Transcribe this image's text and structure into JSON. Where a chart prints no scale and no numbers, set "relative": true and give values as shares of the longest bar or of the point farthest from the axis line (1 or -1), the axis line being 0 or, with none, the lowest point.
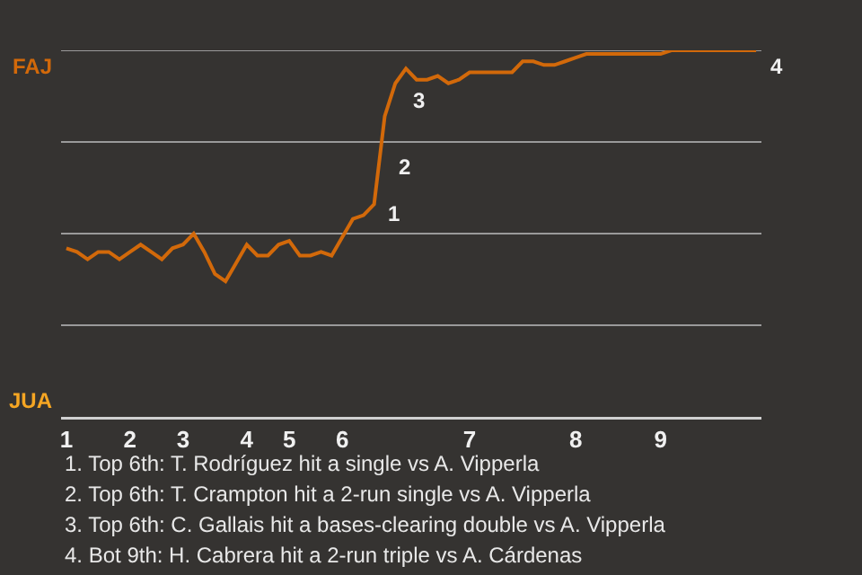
{
  "chart_data": {
    "type": "line",
    "relative": true,
    "categories": [
      "1",
      null,
      null,
      null,
      null,
      null,
      "2",
      null,
      null,
      null,
      null,
      "3",
      null,
      null,
      null,
      null,
      null,
      "4",
      null,
      null,
      null,
      "5",
      null,
      null,
      null,
      null,
      "6",
      null,
      null,
      null,
      null,
      null,
      null,
      null,
      null,
      null,
      null,
      null,
      "7",
      null,
      null,
      null,
      null,
      null,
      null,
      null,
      null,
      null,
      "8",
      null,
      null,
      null,
      null,
      null,
      null,
      null,
      "9",
      null,
      null,
      null,
      null,
      null,
      null,
      null,
      null,
      null
    ],
    "color": "#d2690a",
    "values": [
      0.46,
      0.45,
      0.43,
      0.45,
      0.45,
      0.43,
      0.45,
      0.47,
      0.45,
      0.43,
      0.46,
      0.47,
      0.5,
      0.45,
      0.39,
      0.37,
      0.42,
      0.47,
      0.44,
      0.44,
      0.47,
      0.48,
      0.44,
      0.44,
      0.45,
      0.44,
      0.49,
      0.54,
      0.55,
      0.58,
      0.82,
      0.91,
      0.95,
      0.92,
      0.92,
      0.93,
      0.91,
      0.92,
      0.94,
      0.94,
      0.94,
      0.94,
      0.94,
      0.97,
      0.97,
      0.96,
      0.96,
      0.97,
      0.98,
      0.99,
      0.99,
      0.99,
      0.99,
      0.99,
      0.99,
      0.99,
      0.99,
      1.0,
      1.0,
      1.0,
      1.0,
      1.0,
      1.0,
      1.0,
      1.0,
      1.0
    ],
    "line_style": "solid",
    "ref_lines": [
      {
        "axis": "y",
        "value": 0.25
      },
      {
        "axis": "y",
        "value": 0.5
      },
      {
        "axis": "y",
        "value": 0.75
      },
      {
        "axis": "y",
        "value": 1.0
      }
    ],
    "annotations": [
      "FAJ",
      "JUA",
      "1",
      "2",
      "3",
      "4",
      "1. Top 6th: T. Rodríguez hit a single vs A. Vipperla",
      "2. Top 6th: T. Crampton hit a 2-run single vs A. Vipperla",
      "3. Top 6th: C. Gallais hit a bases-clearing double vs A. Vipperla",
      "4. Bot 9th: H. Cabrera hit a 2-run triple vs A. Cárdenas"
    ]
  }
}
